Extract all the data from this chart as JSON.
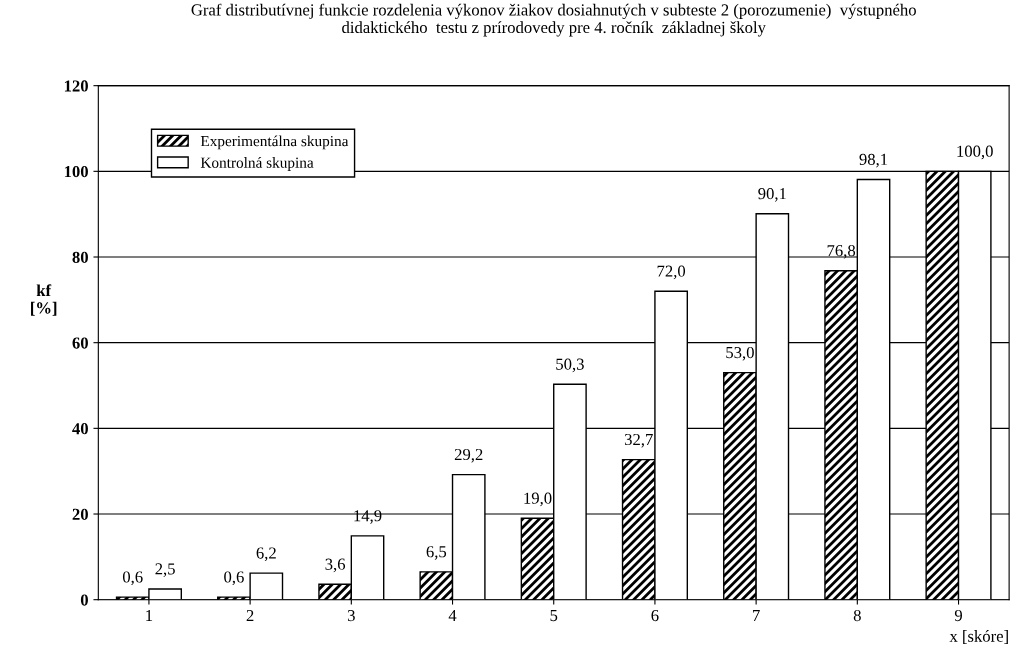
{
  "chart_data": {
    "type": "bar",
    "title": "Graf distributívnej funkcie rozdelenia výkonov žiakov dosiahnutých v subteste 2 (porozumenie)  výstupného\ndidaktického  testu z prírodovedy pre 4. ročník  základnej školy",
    "xlabel": "x [skóre]",
    "ylabel": "kf\n[%]",
    "categories": [
      "1",
      "2",
      "3",
      "4",
      "5",
      "6",
      "7",
      "8",
      "9"
    ],
    "series": [
      {
        "name": "Experimentálna skupina",
        "color": "#000000",
        "values": [
          0.6,
          0.6,
          3.6,
          6.5,
          19.0,
          32.7,
          53.0,
          76.8,
          100.0
        ],
        "value_labels": [
          "0,6",
          "0,6",
          "3,6",
          "6,5",
          "19,0",
          "32,7",
          "53,0",
          "76,8",
          null
        ]
      },
      {
        "name": "Kontrolná skupina",
        "color": "#ffffff",
        "values": [
          2.5,
          6.2,
          14.9,
          29.2,
          50.3,
          72.0,
          90.1,
          98.1,
          100.0
        ],
        "value_labels": [
          "2,5",
          "6,2",
          "14,9",
          "29,2",
          "50,3",
          "72,0",
          "90,1",
          "98,1",
          "100,0"
        ]
      }
    ],
    "ylim": [
      0,
      120
    ],
    "yticks": [
      0,
      20,
      40,
      60,
      80,
      100,
      120
    ],
    "grid": "y",
    "legend": "top left"
  }
}
